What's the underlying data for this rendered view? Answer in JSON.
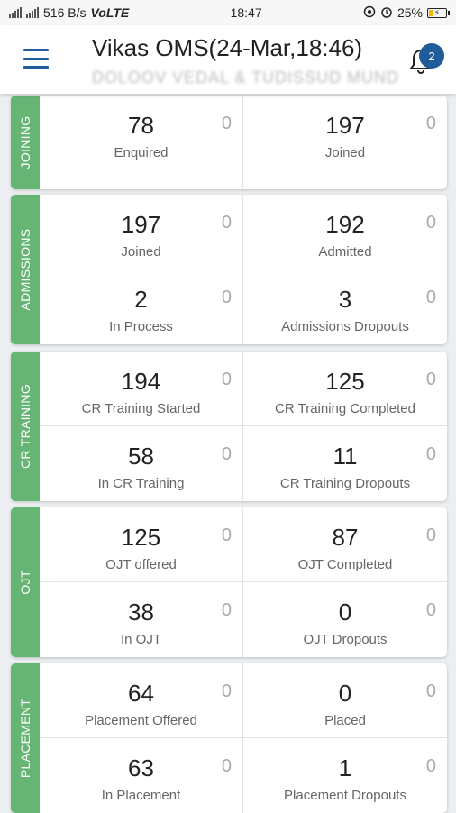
{
  "status_bar": {
    "speed": "516 B/s",
    "network": "VoLTE",
    "time": "18:47",
    "battery": "25%",
    "battery_level": 0.25
  },
  "header": {
    "title": "Vikas OMS(24-Mar,18:46)",
    "subtitle": "DOLOOV VEDAL & TUDISSUD MUND",
    "notification_count": "2"
  },
  "sections": [
    {
      "name": "JOINING",
      "cells": [
        {
          "value": "78",
          "label": "Enquired",
          "side": "0"
        },
        {
          "value": "197",
          "label": "Joined",
          "side": "0"
        }
      ]
    },
    {
      "name": "ADMISSIONS",
      "cells": [
        {
          "value": "197",
          "label": "Joined",
          "side": "0"
        },
        {
          "value": "192",
          "label": "Admitted",
          "side": "0"
        },
        {
          "value": "2",
          "label": "In Process",
          "side": "0"
        },
        {
          "value": "3",
          "label": "Admissions Dropouts",
          "side": "0"
        }
      ]
    },
    {
      "name": "CR TRAINING",
      "cells": [
        {
          "value": "194",
          "label": "CR Training Started",
          "side": "0"
        },
        {
          "value": "125",
          "label": "CR Training Completed",
          "side": "0"
        },
        {
          "value": "58",
          "label": "In CR Training",
          "side": "0"
        },
        {
          "value": "11",
          "label": "CR Training Dropouts",
          "side": "0"
        }
      ]
    },
    {
      "name": "OJT",
      "cells": [
        {
          "value": "125",
          "label": "OJT offered",
          "side": "0"
        },
        {
          "value": "87",
          "label": "OJT Completed",
          "side": "0"
        },
        {
          "value": "38",
          "label": "In OJT",
          "side": "0"
        },
        {
          "value": "0",
          "label": "OJT Dropouts",
          "side": "0"
        }
      ]
    },
    {
      "name": "PLACEMENT",
      "cells": [
        {
          "value": "64",
          "label": "Placement Offered",
          "side": "0"
        },
        {
          "value": "0",
          "label": "Placed",
          "side": "0"
        },
        {
          "value": "63",
          "label": "In Placement",
          "side": "0"
        },
        {
          "value": "1",
          "label": "Placement Dropouts",
          "side": "0"
        }
      ]
    }
  ]
}
